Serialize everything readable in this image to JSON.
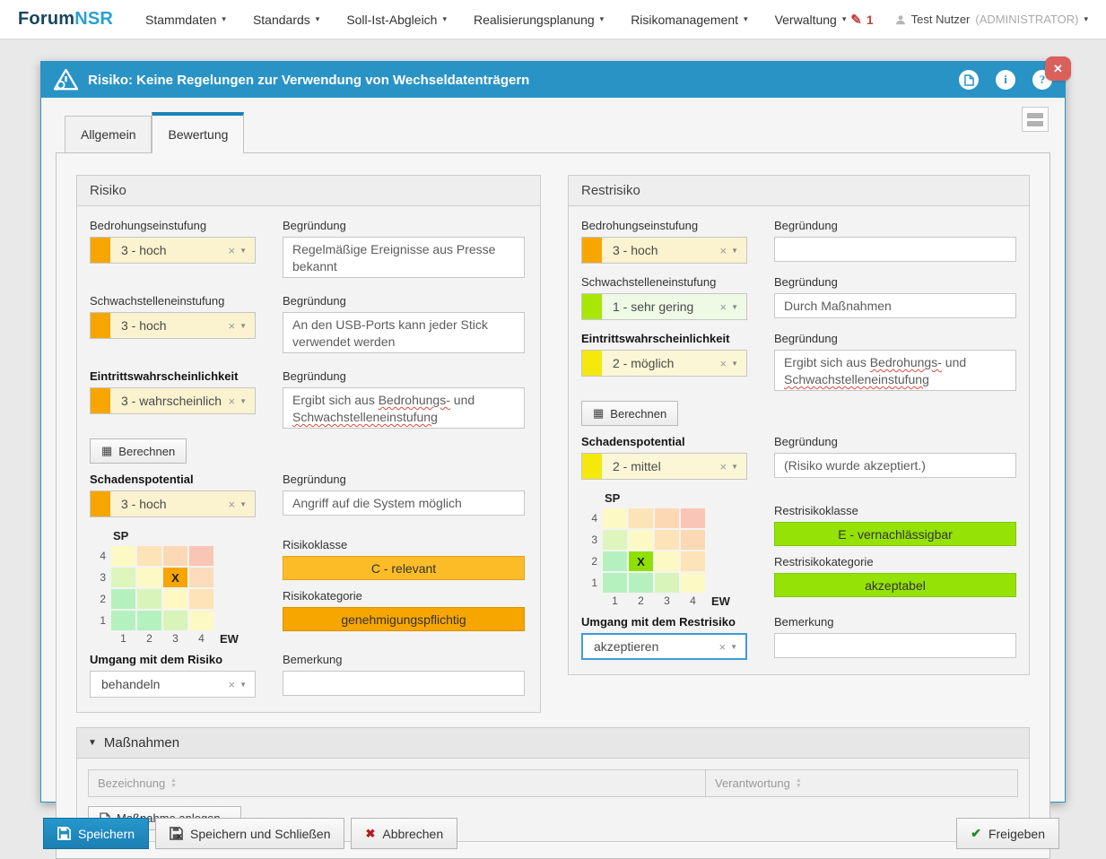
{
  "nav": {
    "brand_forum": "Forum",
    "brand_nsr": "NSR",
    "items": [
      "Stammdaten",
      "Standards",
      "Soll-Ist-Abgleich",
      "Realisierungsplanung",
      "Risikomanagement",
      "Verwaltung"
    ],
    "edit_badge": "1",
    "user_name": "Test Nutzer",
    "user_role": "(ADMINISTRATOR)"
  },
  "icons": {
    "pencil": "✎",
    "close": "✕",
    "clear": "×",
    "caret": "▼",
    "caret_small": "▾",
    "calc": "▦",
    "cancel": "✖",
    "check": "✔",
    "sort_up": "▲",
    "sort_down": "▼",
    "info": "i",
    "help": "?",
    "collapse": "▼"
  },
  "dialog": {
    "title": "Risiko: Keine Regelungen zur Verwendung von Wechseldatenträgern",
    "tab_allgemein": "Allgemein",
    "tab_bewertung": "Bewertung"
  },
  "risiko": {
    "panel_title": "Risiko",
    "bedrohung": {
      "label": "Bedrohungseinstufung",
      "value": "3 - hoch",
      "swatch": "#f7a600",
      "bg": "#fbf2cf"
    },
    "bedrohung_begruendung": {
      "label": "Begründung",
      "value": "Regelmäßige Ereignisse aus Presse bekannt"
    },
    "schwachstelle": {
      "label": "Schwachstelleneinstufung",
      "value": "3 - hoch",
      "swatch": "#f7a600",
      "bg": "#fbf2cf"
    },
    "schwachstelle_begruendung": {
      "label": "Begründung",
      "value": "An den USB-Ports kann jeder Stick verwendet werden"
    },
    "ew": {
      "label": "Eintrittswahrscheinlichkeit",
      "value": "3 - wahrscheinlich",
      "swatch": "#f7a600",
      "bg": "#fbf2cf"
    },
    "ew_begruendung": {
      "label": "Begründung",
      "pre": "Ergibt sich aus ",
      "word1": "Bedrohungs-",
      "mid": " und ",
      "word2": "Schwachstelleneinstufung"
    },
    "berechnen_label": "Berechnen",
    "sp": {
      "label": "Schadenspotential",
      "value": "3 - hoch",
      "swatch": "#f7a600",
      "bg": "#fbf2cf"
    },
    "sp_begruendung": {
      "label": "Begründung",
      "value": "Angriff auf die System möglich"
    },
    "matrix": {
      "sp_axis": "SP",
      "ew_axis": "EW",
      "row_labels": [
        "4",
        "3",
        "2",
        "1"
      ],
      "col_labels": [
        "1",
        "2",
        "3",
        "4"
      ],
      "mark": "X",
      "mark_row": 1,
      "mark_col": 2,
      "cells": [
        [
          "#fdf9c4",
          "#fce3b8",
          "#fcd9b4",
          "#f9c5b5"
        ],
        [
          "#def5bd",
          "#fdf9c4",
          "#f7a600",
          "#fcdcba"
        ],
        [
          "#b5f1bf",
          "#d9f4bb",
          "#fdf9c4",
          "#fce3b8"
        ],
        [
          "#b5f1bf",
          "#b5f1bf",
          "#d9f4bb",
          "#fdf9c4"
        ]
      ]
    },
    "risikoklasse": {
      "label": "Risikoklasse",
      "value": "C - relevant",
      "color": "#fbbc28"
    },
    "risikokategorie": {
      "label": "Risikokategorie",
      "value": "genehmigungspflichtig",
      "color": "#f7a600"
    },
    "umgang": {
      "label": "Umgang mit dem Risiko",
      "value": "behandeln"
    },
    "bemerkung": {
      "label": "Bemerkung",
      "value": ""
    }
  },
  "restrisiko": {
    "panel_title": "Restrisiko",
    "bedrohung": {
      "label": "Bedrohungseinstufung",
      "value": "3 - hoch",
      "swatch": "#f7a600",
      "bg": "#fbf2cf"
    },
    "bedrohung_begruendung": {
      "label": "Begründung",
      "value": ""
    },
    "schwachstelle": {
      "label": "Schwachstelleneinstufung",
      "value": "1 - sehr gering",
      "swatch": "#a8e606",
      "bg": "#effae6"
    },
    "schwachstelle_begruendung": {
      "label": "Begründung",
      "value": "Durch Maßnahmen"
    },
    "ew": {
      "label": "Eintrittswahrscheinlichkeit",
      "value": "2 - möglich",
      "swatch": "#f3e90c",
      "bg": "#fbf7d6"
    },
    "ew_begruendung": {
      "label": "Begründung",
      "pre": "Ergibt sich aus ",
      "word1": "Bedrohungs-",
      "mid": " und ",
      "word2": "Schwachstelleneinstufung"
    },
    "berechnen_label": "Berechnen",
    "sp": {
      "label": "Schadenspotential",
      "value": "2 - mittel",
      "swatch": "#f3e90c",
      "bg": "#fbf7d6"
    },
    "sp_begruendung": {
      "label": "Begründung",
      "value": "(Risiko wurde akzeptiert.)"
    },
    "matrix": {
      "sp_axis": "SP",
      "ew_axis": "EW",
      "row_labels": [
        "4",
        "3",
        "2",
        "1"
      ],
      "col_labels": [
        "1",
        "2",
        "3",
        "4"
      ],
      "mark": "X",
      "mark_row": 2,
      "mark_col": 1,
      "cells": [
        [
          "#fdf9c4",
          "#fce3b8",
          "#fcd9b4",
          "#f9c5b5"
        ],
        [
          "#def5bd",
          "#fdf9c4",
          "#fce3b8",
          "#fcd9b4"
        ],
        [
          "#b5f1bf",
          "#8ee000",
          "#fdf9c4",
          "#fce3b8"
        ],
        [
          "#b5f1bf",
          "#b5f1bf",
          "#d9f4bb",
          "#fdf9c4"
        ]
      ]
    },
    "klasse": {
      "label": "Restrisikoklasse",
      "value": "E - vernachlässigbar",
      "color": "#95e206"
    },
    "kategorie": {
      "label": "Restrisikokategorie",
      "value": "akzeptabel",
      "color": "#95e206"
    },
    "umgang": {
      "label": "Umgang mit dem Restrisiko",
      "value": "akzeptieren"
    },
    "bemerkung": {
      "label": "Bemerkung",
      "value": ""
    }
  },
  "massnahmen": {
    "title": "Maßnahmen",
    "col_bezeichnung": "Bezeichnung",
    "col_verantwortung": "Verantwortung",
    "add_button": "Maßnahme anlegen..."
  },
  "footer": {
    "speichern": "Speichern",
    "speichern_schliessen": "Speichern und Schließen",
    "abbrechen": "Abbrechen",
    "freigeben": "Freigeben"
  }
}
